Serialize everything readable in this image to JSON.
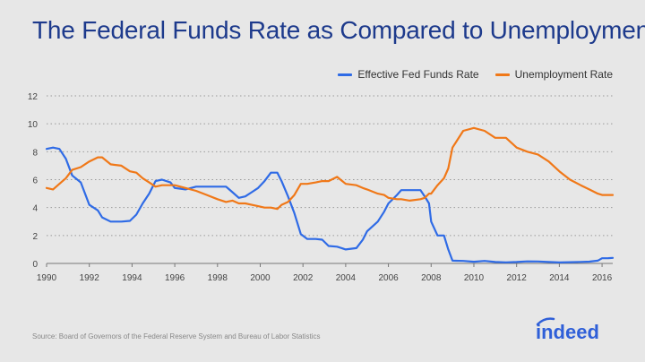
{
  "title": "The Federal Funds Rate as Compared to Unemployment",
  "source": "Source: Board of Governors of the Federal Reserve System and Bureau of Labor Statistics",
  "logo_text": "indeed",
  "colors": {
    "fed": "#2f6be6",
    "unemp": "#f07818",
    "title": "#1d3a8c",
    "grid": "#9a9a9a"
  },
  "chart_data": {
    "type": "line",
    "title": "The Federal Funds Rate as Compared to Unemployment",
    "xlabel": "",
    "ylabel": "",
    "xlim": [
      1990,
      2016.5
    ],
    "ylim": [
      0,
      12
    ],
    "xticks": [
      "1990",
      "1992",
      "1994",
      "1996",
      "1998",
      "2000",
      "2002",
      "2004",
      "2006",
      "2008",
      "2010",
      "2012",
      "2014",
      "2016"
    ],
    "yticks": [
      "0",
      "2",
      "4",
      "6",
      "8",
      "10",
      "12"
    ],
    "grid": "horizontal dotted",
    "legend": "top-right",
    "series": [
      {
        "name": "Effective Fed Funds Rate",
        "color": "#2f6be6",
        "points": [
          [
            1990.0,
            8.2
          ],
          [
            1990.3,
            8.3
          ],
          [
            1990.6,
            8.2
          ],
          [
            1990.9,
            7.5
          ],
          [
            1991.2,
            6.3
          ],
          [
            1991.6,
            5.8
          ],
          [
            1992.0,
            4.2
          ],
          [
            1992.4,
            3.8
          ],
          [
            1992.6,
            3.3
          ],
          [
            1993.0,
            3.0
          ],
          [
            1993.5,
            3.0
          ],
          [
            1993.9,
            3.05
          ],
          [
            1994.2,
            3.5
          ],
          [
            1994.5,
            4.3
          ],
          [
            1994.8,
            5.0
          ],
          [
            1995.1,
            5.9
          ],
          [
            1995.4,
            6.0
          ],
          [
            1995.8,
            5.8
          ],
          [
            1996.0,
            5.4
          ],
          [
            1996.5,
            5.3
          ],
          [
            1997.0,
            5.5
          ],
          [
            1997.5,
            5.5
          ],
          [
            1998.0,
            5.5
          ],
          [
            1998.4,
            5.5
          ],
          [
            1998.7,
            5.1
          ],
          [
            1999.0,
            4.7
          ],
          [
            1999.3,
            4.8
          ],
          [
            1999.6,
            5.1
          ],
          [
            1999.9,
            5.4
          ],
          [
            2000.2,
            5.9
          ],
          [
            2000.5,
            6.5
          ],
          [
            2000.8,
            6.5
          ],
          [
            2001.0,
            5.9
          ],
          [
            2001.3,
            4.8
          ],
          [
            2001.6,
            3.6
          ],
          [
            2001.9,
            2.1
          ],
          [
            2002.2,
            1.75
          ],
          [
            2002.6,
            1.75
          ],
          [
            2002.9,
            1.7
          ],
          [
            2003.2,
            1.25
          ],
          [
            2003.6,
            1.2
          ],
          [
            2004.0,
            1.0
          ],
          [
            2004.5,
            1.1
          ],
          [
            2004.8,
            1.7
          ],
          [
            2005.0,
            2.3
          ],
          [
            2005.5,
            3.0
          ],
          [
            2005.8,
            3.7
          ],
          [
            2006.0,
            4.3
          ],
          [
            2006.4,
            4.9
          ],
          [
            2006.6,
            5.25
          ],
          [
            2007.0,
            5.25
          ],
          [
            2007.5,
            5.25
          ],
          [
            2007.7,
            4.8
          ],
          [
            2007.9,
            4.3
          ],
          [
            2008.0,
            3.0
          ],
          [
            2008.3,
            2.0
          ],
          [
            2008.6,
            2.0
          ],
          [
            2008.8,
            1.0
          ],
          [
            2009.0,
            0.2
          ],
          [
            2009.5,
            0.18
          ],
          [
            2010.0,
            0.12
          ],
          [
            2010.5,
            0.18
          ],
          [
            2011.0,
            0.1
          ],
          [
            2011.5,
            0.08
          ],
          [
            2012.0,
            0.1
          ],
          [
            2012.5,
            0.15
          ],
          [
            2013.0,
            0.14
          ],
          [
            2013.5,
            0.1
          ],
          [
            2014.0,
            0.07
          ],
          [
            2014.5,
            0.09
          ],
          [
            2015.0,
            0.11
          ],
          [
            2015.4,
            0.13
          ],
          [
            2015.8,
            0.2
          ],
          [
            2016.0,
            0.37
          ],
          [
            2016.3,
            0.38
          ],
          [
            2016.5,
            0.4
          ]
        ]
      },
      {
        "name": "Unemployment Rate",
        "color": "#f07818",
        "points": [
          [
            1990.0,
            5.4
          ],
          [
            1990.3,
            5.3
          ],
          [
            1990.6,
            5.7
          ],
          [
            1990.9,
            6.1
          ],
          [
            1991.2,
            6.7
          ],
          [
            1991.6,
            6.9
          ],
          [
            1992.0,
            7.3
          ],
          [
            1992.4,
            7.6
          ],
          [
            1992.6,
            7.6
          ],
          [
            1993.0,
            7.1
          ],
          [
            1993.5,
            7.0
          ],
          [
            1993.9,
            6.6
          ],
          [
            1994.2,
            6.5
          ],
          [
            1994.5,
            6.1
          ],
          [
            1994.8,
            5.8
          ],
          [
            1995.1,
            5.5
          ],
          [
            1995.4,
            5.6
          ],
          [
            1995.8,
            5.6
          ],
          [
            1996.0,
            5.6
          ],
          [
            1996.5,
            5.4
          ],
          [
            1997.0,
            5.2
          ],
          [
            1997.5,
            4.9
          ],
          [
            1998.0,
            4.6
          ],
          [
            1998.4,
            4.4
          ],
          [
            1998.7,
            4.5
          ],
          [
            1999.0,
            4.3
          ],
          [
            1999.3,
            4.3
          ],
          [
            1999.6,
            4.2
          ],
          [
            1999.9,
            4.1
          ],
          [
            2000.2,
            4.0
          ],
          [
            2000.5,
            4.0
          ],
          [
            2000.8,
            3.9
          ],
          [
            2001.0,
            4.2
          ],
          [
            2001.3,
            4.4
          ],
          [
            2001.6,
            4.9
          ],
          [
            2001.9,
            5.7
          ],
          [
            2002.2,
            5.7
          ],
          [
            2002.6,
            5.8
          ],
          [
            2002.9,
            5.9
          ],
          [
            2003.2,
            5.9
          ],
          [
            2003.6,
            6.2
          ],
          [
            2004.0,
            5.7
          ],
          [
            2004.5,
            5.6
          ],
          [
            2004.8,
            5.4
          ],
          [
            2005.0,
            5.3
          ],
          [
            2005.5,
            5.0
          ],
          [
            2005.8,
            4.9
          ],
          [
            2006.0,
            4.7
          ],
          [
            2006.4,
            4.6
          ],
          [
            2006.6,
            4.6
          ],
          [
            2007.0,
            4.5
          ],
          [
            2007.5,
            4.6
          ],
          [
            2007.7,
            4.7
          ],
          [
            2007.9,
            5.0
          ],
          [
            2008.0,
            5.0
          ],
          [
            2008.3,
            5.6
          ],
          [
            2008.6,
            6.1
          ],
          [
            2008.8,
            6.8
          ],
          [
            2009.0,
            8.3
          ],
          [
            2009.5,
            9.5
          ],
          [
            2010.0,
            9.7
          ],
          [
            2010.5,
            9.5
          ],
          [
            2011.0,
            9.0
          ],
          [
            2011.5,
            9.0
          ],
          [
            2012.0,
            8.3
          ],
          [
            2012.5,
            8.0
          ],
          [
            2013.0,
            7.8
          ],
          [
            2013.5,
            7.3
          ],
          [
            2014.0,
            6.6
          ],
          [
            2014.5,
            6.0
          ],
          [
            2015.0,
            5.6
          ],
          [
            2015.4,
            5.3
          ],
          [
            2015.8,
            5.0
          ],
          [
            2016.0,
            4.9
          ],
          [
            2016.3,
            4.9
          ],
          [
            2016.5,
            4.9
          ]
        ]
      }
    ]
  }
}
